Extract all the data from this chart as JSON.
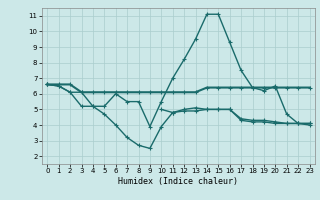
{
  "xlabel": "Humidex (Indice chaleur)",
  "bg_color": "#cce8e8",
  "grid_color": "#aacece",
  "line_color": "#1a6b6b",
  "xlim": [
    -0.5,
    23.5
  ],
  "ylim": [
    1.5,
    11.5
  ],
  "xticks": [
    0,
    1,
    2,
    3,
    4,
    5,
    6,
    7,
    8,
    9,
    10,
    11,
    12,
    13,
    14,
    15,
    16,
    17,
    18,
    19,
    20,
    21,
    22,
    23
  ],
  "yticks": [
    2,
    3,
    4,
    5,
    6,
    7,
    8,
    9,
    10,
    11
  ],
  "line1_x": [
    0,
    1,
    2,
    3,
    4,
    5,
    6,
    7,
    8,
    9,
    10,
    11,
    12,
    13,
    14,
    15,
    16,
    17,
    18,
    19,
    20,
    21,
    22,
    23
  ],
  "line1_y": [
    6.6,
    6.5,
    6.1,
    6.1,
    5.2,
    5.2,
    6.0,
    5.5,
    5.5,
    3.9,
    5.5,
    7.0,
    8.2,
    9.5,
    11.1,
    11.1,
    9.3,
    7.5,
    6.4,
    6.2,
    6.5,
    4.7,
    4.1,
    4.1
  ],
  "line2_x": [
    0,
    1,
    2,
    3,
    4,
    5,
    6,
    7,
    8,
    9,
    10,
    11,
    12,
    13,
    14,
    15,
    16,
    17,
    18,
    19,
    20,
    21,
    22,
    23
  ],
  "line2_y": [
    6.6,
    6.5,
    6.1,
    5.2,
    5.2,
    4.7,
    4.0,
    3.2,
    2.7,
    2.5,
    3.9,
    4.8,
    5.0,
    5.1,
    5.0,
    5.0,
    5.0,
    4.3,
    4.2,
    4.2,
    4.1,
    4.1,
    4.1,
    4.1
  ],
  "line3_x": [
    0,
    1,
    2,
    3,
    4,
    5,
    6,
    7,
    8,
    9,
    10,
    11,
    12,
    13,
    14,
    15,
    16,
    17,
    18,
    19,
    20,
    21,
    22,
    23
  ],
  "line3_y": [
    6.6,
    6.6,
    6.6,
    6.1,
    6.1,
    6.1,
    6.1,
    6.1,
    6.1,
    6.1,
    6.1,
    6.1,
    6.1,
    6.1,
    6.4,
    6.4,
    6.4,
    6.4,
    6.4,
    6.4,
    6.4,
    6.4,
    6.4,
    6.4
  ],
  "line4_x": [
    10,
    11,
    12,
    13,
    14,
    15,
    16,
    17,
    18,
    19,
    20,
    21,
    22,
    23
  ],
  "line4_y": [
    5.0,
    4.8,
    4.9,
    4.9,
    5.0,
    5.0,
    5.0,
    4.4,
    4.3,
    4.3,
    4.2,
    4.1,
    4.1,
    4.0
  ]
}
